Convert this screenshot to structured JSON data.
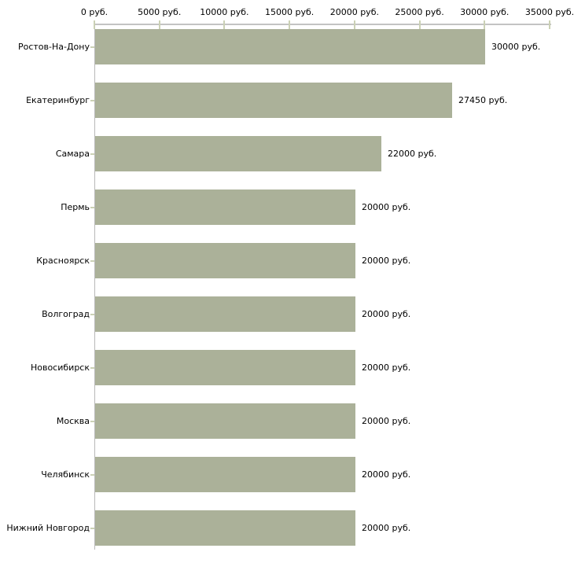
{
  "chart_data": {
    "type": "bar",
    "orientation": "horizontal",
    "categories": [
      "Ростов-На-Дону",
      "Екатеринбург",
      "Самара",
      "Пермь",
      "Красноярск",
      "Волгоград",
      "Новосибирск",
      "Москва",
      "Челябинск",
      "Нижний Новгород"
    ],
    "values": [
      30000,
      27450,
      22000,
      20000,
      20000,
      20000,
      20000,
      20000,
      20000,
      20000
    ],
    "value_labels": [
      "30000 руб.",
      "27450 руб.",
      "22000 руб.",
      "20000 руб.",
      "20000 руб.",
      "20000 руб.",
      "20000 руб.",
      "20000 руб.",
      "20000 руб.",
      "20000 руб."
    ],
    "x_axis": {
      "position": "top",
      "min": 0,
      "max": 35000,
      "tick_values": [
        0,
        5000,
        10000,
        15000,
        20000,
        25000,
        30000,
        35000
      ],
      "tick_labels": [
        "0 руб.",
        "5000 руб.",
        "10000 руб.",
        "15000 руб.",
        "20000 руб.",
        "25000 руб.",
        "30000 руб.",
        "35000 руб."
      ]
    },
    "unit_suffix": " руб.",
    "grid": false,
    "legend": false,
    "colors": {
      "bar": "#abb199",
      "axis_line_h": "#c3c3c3",
      "axis_line_v": "#b9b9b9",
      "tick": "#cbd1b5",
      "text": "#000000",
      "background": "#ffffff"
    }
  }
}
